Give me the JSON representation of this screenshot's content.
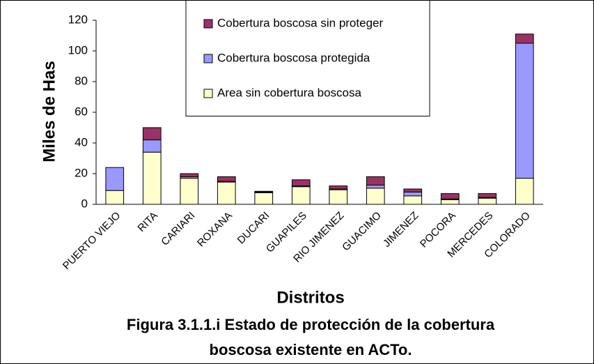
{
  "chart_data": {
    "type": "stacked_bar",
    "caption": [
      "Figura  3.1.1.i Estado de protección de la cobertura",
      "boscosa existente en ACTo."
    ],
    "x_label": "Distritos",
    "y_label": "Miles de Has",
    "categories": [
      "PUERTO VIEJO",
      "RITA",
      "CARIARI",
      "ROXANA",
      "DUCARI",
      "GUAPILES",
      "RIO JIMENEZ",
      "GUACIMO",
      "JIMENEZ",
      "POCORA",
      "MERCEDES",
      "COLORADO"
    ],
    "series": [
      {
        "name": "Area sin cobertura boscosa",
        "color": "#ffffcc",
        "values": [
          9,
          34,
          17,
          14.5,
          7.5,
          11.5,
          9.5,
          10.5,
          5.5,
          3,
          4,
          17
        ]
      },
      {
        "name": "Cobertura boscosa protegida",
        "color": "#9999ff",
        "values": [
          15,
          8,
          1,
          0.5,
          0.5,
          0.5,
          0.5,
          2,
          2.5,
          0.5,
          0.5,
          88
        ]
      },
      {
        "name": "Cobertura boscosa sin proteger",
        "color": "#993366",
        "values": [
          0,
          8,
          2,
          3,
          0.5,
          4,
          2,
          5.5,
          2,
          3.5,
          2.5,
          6
        ]
      }
    ],
    "ylim": [
      0,
      120
    ],
    "yticks": [
      0,
      20,
      40,
      60,
      80,
      100,
      120
    ],
    "legend": "top"
  }
}
